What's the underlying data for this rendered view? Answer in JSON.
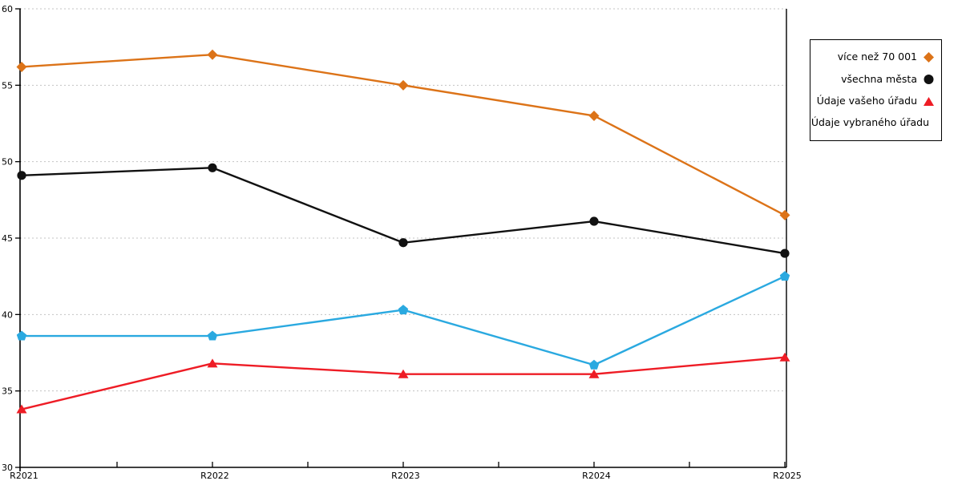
{
  "chart_data": {
    "type": "line",
    "x_categories": [
      "R2021",
      "R2022",
      "R2023",
      "R2024",
      "R2025"
    ],
    "ylim": [
      30,
      60
    ],
    "yticks": [
      30,
      35,
      40,
      45,
      50,
      55,
      60
    ],
    "grid": "horizontal-dotted",
    "legend_position": "outside-top-right",
    "series": [
      {
        "name": "více než 70 001",
        "marker": "diamond",
        "color": "#DC7318",
        "values": [
          56.2,
          57.0,
          55.0,
          53.0,
          46.5
        ]
      },
      {
        "name": "všechna města",
        "marker": "circle",
        "color": "#111111",
        "values": [
          49.1,
          49.6,
          44.7,
          46.1,
          44.0
        ]
      },
      {
        "name": "Údaje vašeho úřadu",
        "marker": "triangle",
        "color": "#EE1C25",
        "values": [
          33.8,
          36.8,
          36.1,
          36.1,
          37.2
        ]
      },
      {
        "name": "Údaje vybraného úřadu",
        "marker": "pentagon",
        "color": "#2AA9E0",
        "values": [
          38.6,
          38.6,
          40.3,
          36.7,
          42.5
        ]
      }
    ],
    "colors": {
      "background": "#FFFFFF",
      "grid": "#C3C3C3",
      "axis": "#000000"
    }
  }
}
